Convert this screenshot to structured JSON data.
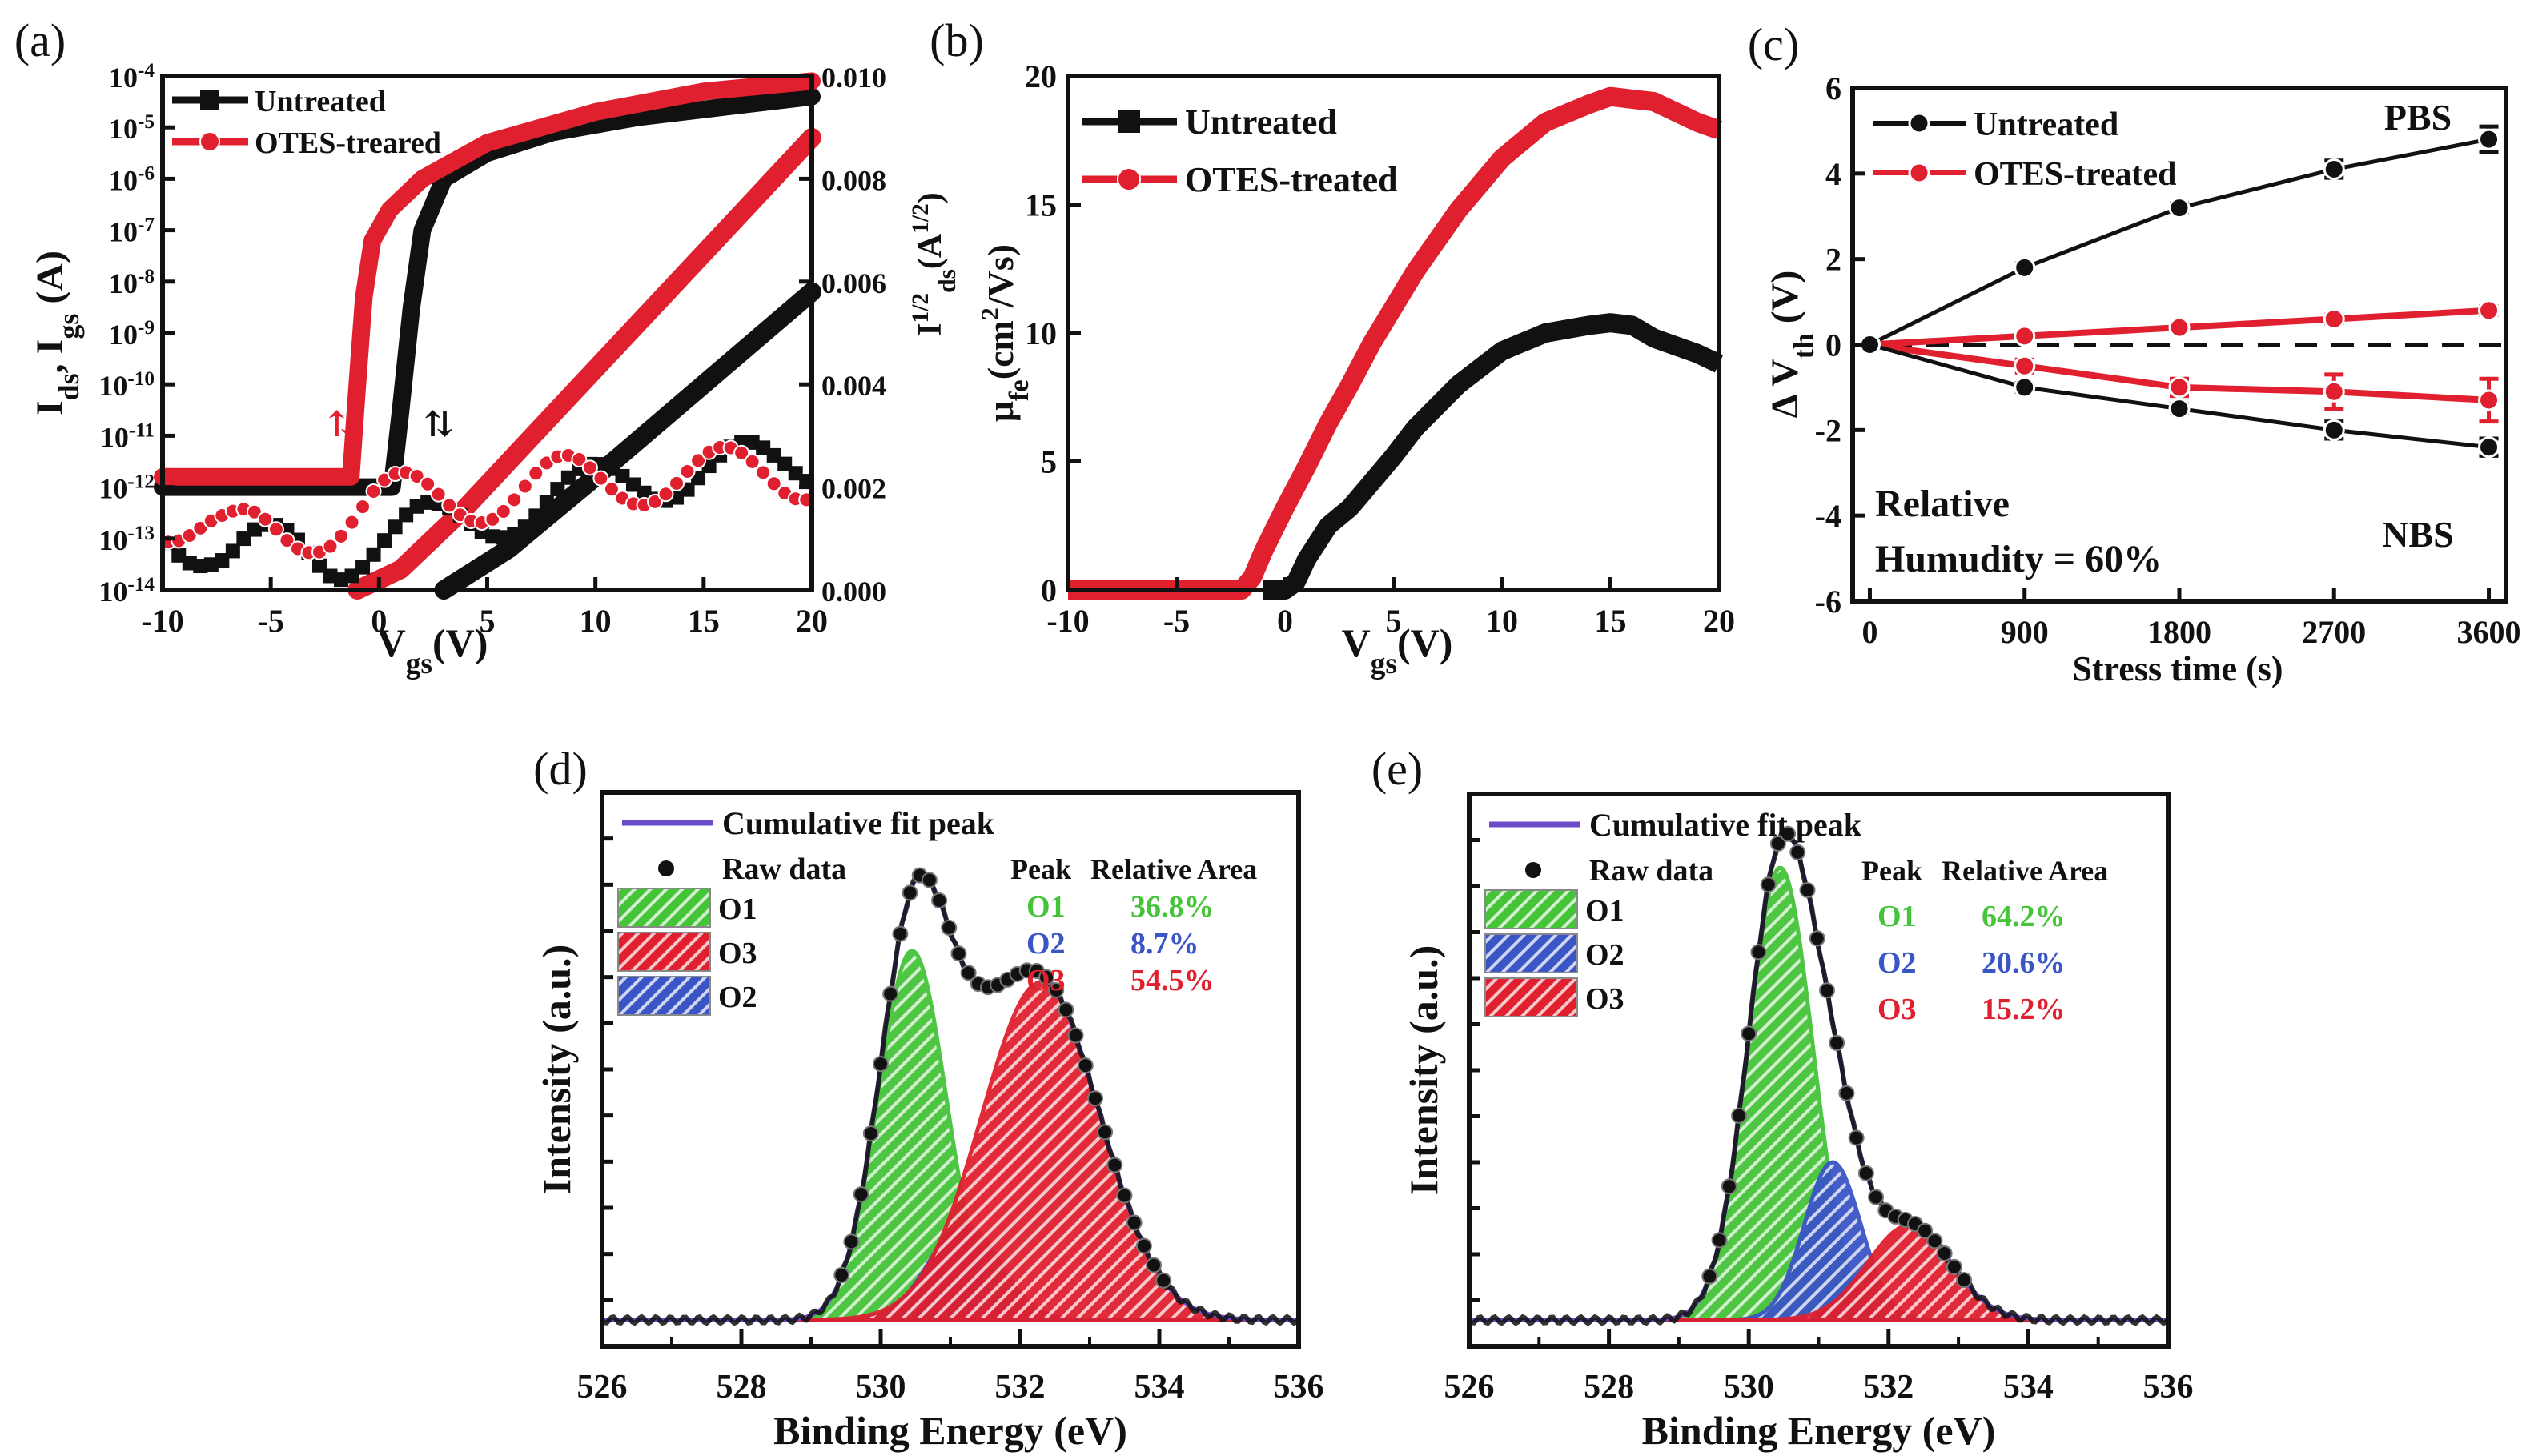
{
  "figure": {
    "colors": {
      "black": "#111111",
      "red": "#e0202e",
      "green": "#45c43a",
      "blue": "#3a55c6",
      "purple": "#6a4bc8"
    }
  },
  "chart_data": [
    {
      "id": "a",
      "panel_label": "(a)",
      "type": "line",
      "xlabel": "V",
      "xlabel_sub": "gs",
      "xlabel_unit": "(V)",
      "ylabel": "I",
      "ylabel_sub1": "ds",
      "ylabel_mid": ", I",
      "ylabel_sub2": "gs",
      "ylabel_unit": " (A)",
      "y2label": "I",
      "y2label_sup": "1/2",
      "y2label_sub": "ds",
      "y2label_unit": "(A",
      "y2label_unit_sup": "1/2",
      "y2label_close": ")",
      "xlim": [
        -10,
        20
      ],
      "xticks": [
        -10,
        -5,
        0,
        5,
        10,
        15,
        20
      ],
      "ylim_log_exp": [
        -14,
        -4
      ],
      "yticks_exp": [
        -4,
        -5,
        -6,
        -7,
        -8,
        -9,
        -10,
        -11,
        -12,
        -13,
        -14
      ],
      "y2lim": [
        0,
        0.01
      ],
      "y2ticks": [
        "0.010",
        "0.008",
        "0.006",
        "0.004",
        "0.002",
        "0.000"
      ],
      "legend": [
        {
          "label": "Untreated",
          "marker": "square",
          "color": "#111111"
        },
        {
          "label": "OTES-treared",
          "marker": "circle",
          "color": "#e0202e"
        }
      ],
      "series": [
        {
          "name": "Untreated log Ids",
          "axis": "log",
          "color": "#111111",
          "x": [
            -10,
            -6,
            -2,
            0.6,
            1.0,
            1.5,
            2.0,
            3,
            5,
            8,
            12,
            16,
            20
          ],
          "y": [
            -12,
            -12,
            -12,
            -12,
            -10.5,
            -8.5,
            -7,
            -6,
            -5.5,
            -5.1,
            -4.8,
            -4.6,
            -4.4
          ]
        },
        {
          "name": "OTES log Ids",
          "axis": "log",
          "color": "#e0202e",
          "x": [
            -10,
            -6,
            -2,
            -1.3,
            -1.0,
            -0.7,
            -0.3,
            0.5,
            2,
            5,
            10,
            15,
            20
          ],
          "y": [
            -11.8,
            -11.8,
            -11.8,
            -11.8,
            -10,
            -8.3,
            -7.2,
            -6.6,
            -6,
            -5.3,
            -4.7,
            -4.3,
            -4.1
          ]
        },
        {
          "name": "Untreated sqrt Ids",
          "axis": "linear",
          "color": "#111111",
          "x": [
            3,
            6,
            10,
            15,
            20
          ],
          "y": [
            0.0,
            0.0008,
            0.0022,
            0.004,
            0.0058
          ]
        },
        {
          "name": "OTES sqrt Ids",
          "axis": "linear",
          "color": "#e0202e",
          "x": [
            -1,
            1,
            4,
            8,
            12,
            16,
            20
          ],
          "y": [
            0.0,
            0.0004,
            0.0016,
            0.0034,
            0.0052,
            0.007,
            0.0088
          ]
        },
        {
          "name": "Untreated Igs",
          "axis": "log",
          "color": "#111111",
          "x": [
            -10,
            -7,
            -4,
            -2,
            0,
            3,
            6,
            9,
            12,
            15,
            18,
            20
          ],
          "y": [
            -12.6,
            -13.4,
            -13.2,
            -13.3,
            -13.0,
            -12.8,
            -12.4,
            -12.2,
            -11.8,
            -11.6,
            -11.7,
            -11.5
          ]
        },
        {
          "name": "OTES Igs",
          "axis": "log",
          "color": "#e0202e",
          "x": [
            -10,
            -7,
            -4,
            -2,
            0,
            3,
            6,
            9,
            12,
            15,
            18,
            20
          ],
          "y": [
            -12.5,
            -13.0,
            -12.9,
            -12.6,
            -12.3,
            -12.2,
            -12.1,
            -11.9,
            -11.8,
            -11.8,
            -11.7,
            -11.7
          ]
        }
      ],
      "annotations": [
        "hysteresis arrows ⇅ near -1.5 V (red) and 2.5 V (black)"
      ]
    },
    {
      "id": "b",
      "panel_label": "(b)",
      "type": "line",
      "xlabel": "V",
      "xlabel_sub": "gs",
      "xlabel_unit": "(V)",
      "ylabel": "μ",
      "ylabel_sub": "fe",
      "ylabel_unit": "(cm",
      "ylabel_unit_sup": "2",
      "ylabel_unit_end": "/Vs)",
      "xlim": [
        -10,
        20
      ],
      "xticks": [
        -10,
        -5,
        0,
        5,
        10,
        15,
        20
      ],
      "ylim": [
        0,
        20
      ],
      "yticks": [
        0,
        5,
        10,
        15,
        20
      ],
      "legend": [
        {
          "label": "Untreated",
          "marker": "square",
          "color": "#111111"
        },
        {
          "label": "OTES-treated",
          "marker": "circle",
          "color": "#e0202e"
        }
      ],
      "series": [
        {
          "name": "Untreated",
          "color": "#111111",
          "x": [
            -1,
            0,
            0.5,
            1,
            2,
            3,
            4,
            5,
            6,
            8,
            10,
            12,
            14,
            15,
            16,
            17,
            18,
            19,
            20
          ],
          "y": [
            0,
            0,
            0.3,
            1.2,
            2.5,
            3.2,
            4.2,
            5.2,
            6.3,
            8.0,
            9.3,
            10.0,
            10.3,
            10.4,
            10.3,
            9.8,
            9.5,
            9.2,
            8.8
          ]
        },
        {
          "name": "OTES-treated",
          "color": "#e0202e",
          "x": [
            -10,
            -2,
            -1.5,
            -1,
            0,
            1,
            2,
            3,
            4,
            5,
            6,
            8,
            10,
            12,
            14,
            15,
            16,
            17,
            18,
            19,
            20
          ],
          "y": [
            0,
            0,
            0.5,
            1.5,
            3.2,
            4.8,
            6.5,
            8.0,
            9.6,
            11.0,
            12.4,
            14.8,
            16.8,
            18.2,
            18.9,
            19.2,
            19.1,
            19.0,
            18.6,
            18.2,
            17.9
          ]
        }
      ]
    },
    {
      "id": "c",
      "panel_label": "(c)",
      "type": "line",
      "xlabel": "Stress time (s)",
      "ylabel": "Δ V",
      "ylabel_sub": "th",
      "ylabel_unit": " (V)",
      "xlim": [
        -100,
        3700
      ],
      "xticks": [
        0,
        900,
        1800,
        2700,
        3600
      ],
      "ylim": [
        -6,
        6
      ],
      "yticks": [
        -6,
        -4,
        -2,
        0,
        2,
        4,
        6
      ],
      "legend": [
        {
          "label": "Untreated",
          "marker": "circle",
          "color": "#111111"
        },
        {
          "label": "OTES-treated",
          "marker": "circle",
          "color": "#e0202e"
        }
      ],
      "annotations": [
        "PBS",
        "NBS",
        "Relative",
        "Humudity = 60%"
      ],
      "series": [
        {
          "name": "Untreated PBS",
          "color": "#111111",
          "x": [
            0,
            900,
            1800,
            2700,
            3600
          ],
          "y": [
            0,
            1.8,
            3.2,
            4.1,
            4.8
          ],
          "err": [
            0,
            0.1,
            0.1,
            0.2,
            0.3
          ]
        },
        {
          "name": "OTES-treated PBS",
          "color": "#e0202e",
          "x": [
            0,
            900,
            1800,
            2700,
            3600
          ],
          "y": [
            0,
            0.2,
            0.4,
            0.6,
            0.8
          ],
          "err": [
            0,
            0.05,
            0.05,
            0.1,
            0.1
          ]
        },
        {
          "name": "OTES-treated NBS",
          "color": "#e0202e",
          "x": [
            0,
            900,
            1800,
            2700,
            3600
          ],
          "y": [
            0,
            -0.5,
            -1.0,
            -1.1,
            -1.3
          ],
          "err": [
            0,
            0.15,
            0.2,
            0.4,
            0.5
          ]
        },
        {
          "name": "Untreated NBS",
          "color": "#111111",
          "x": [
            0,
            900,
            1800,
            2700,
            3600
          ],
          "y": [
            0,
            -1.0,
            -1.5,
            -2.0,
            -2.4
          ],
          "err": [
            0,
            0.1,
            0.1,
            0.2,
            0.2
          ]
        }
      ],
      "reference_line": {
        "y": 0,
        "style": "dashed"
      }
    },
    {
      "id": "d",
      "panel_label": "(d)",
      "type": "area",
      "xlabel": "Binding Energy (eV)",
      "ylabel": "Intensity (a.u.)",
      "xlim": [
        526,
        536
      ],
      "xticks": [
        526,
        528,
        530,
        532,
        534,
        536
      ],
      "legend": [
        {
          "label": "Cumulative fit peak",
          "kind": "line",
          "color": "#6a4bc8"
        },
        {
          "label": "Raw data",
          "kind": "dot",
          "color": "#111111"
        },
        {
          "label": "O1",
          "kind": "hatch",
          "color": "#45c43a"
        },
        {
          "label": "O3",
          "kind": "hatch",
          "color": "#e0202e"
        },
        {
          "label": "O2",
          "kind": "hatch",
          "color": "#3a55c6"
        }
      ],
      "table": {
        "headers": [
          "Peak",
          "Relative Area"
        ],
        "rows": [
          {
            "peak": "O1",
            "area": "36.8%",
            "color": "#45c43a"
          },
          {
            "peak": "O2",
            "area": "8.7%",
            "color": "#3a55c6"
          },
          {
            "peak": "O3",
            "area": "54.5%",
            "color": "#e0202e"
          }
        ]
      },
      "baseline": 0.05,
      "peaks": [
        {
          "name": "O1",
          "center": 530.45,
          "height": 0.7,
          "fwhm": 1.15,
          "color": "#45c43a"
        },
        {
          "name": "O2",
          "center": 531.2,
          "height": 0.18,
          "fwhm": 1.2,
          "color": "#3a55c6"
        },
        {
          "name": "O3",
          "center": 532.3,
          "height": 0.64,
          "fwhm": 2.0,
          "color": "#e0202e"
        }
      ],
      "ylim": [
        0,
        1.05
      ]
    },
    {
      "id": "e",
      "panel_label": "(e)",
      "type": "area",
      "xlabel": "Binding Energy (eV)",
      "ylabel": "Intensity (a.u.)",
      "xlim": [
        526,
        536
      ],
      "xticks": [
        526,
        528,
        530,
        532,
        534,
        536
      ],
      "legend": [
        {
          "label": "Cumulative fit peak",
          "kind": "line",
          "color": "#6a4bc8"
        },
        {
          "label": "Raw data",
          "kind": "dot",
          "color": "#111111"
        },
        {
          "label": "O1",
          "kind": "hatch",
          "color": "#45c43a"
        },
        {
          "label": "O2",
          "kind": "hatch",
          "color": "#3a55c6"
        },
        {
          "label": "O3",
          "kind": "hatch",
          "color": "#e0202e"
        }
      ],
      "table": {
        "headers": [
          "Peak",
          "Relative Area"
        ],
        "rows": [
          {
            "peak": "O1",
            "area": "64.2%",
            "color": "#45c43a"
          },
          {
            "peak": "O2",
            "area": "20.6%",
            "color": "#3a55c6"
          },
          {
            "peak": "O3",
            "area": "15.2%",
            "color": "#e0202e"
          }
        ]
      },
      "baseline": 0.05,
      "peaks": [
        {
          "name": "O1",
          "center": 530.45,
          "height": 0.86,
          "fwhm": 1.1,
          "color": "#45c43a"
        },
        {
          "name": "O2",
          "center": 531.2,
          "height": 0.3,
          "fwhm": 0.95,
          "color": "#3a55c6"
        },
        {
          "name": "O3",
          "center": 532.3,
          "height": 0.18,
          "fwhm": 1.4,
          "color": "#e0202e"
        }
      ],
      "ylim": [
        0,
        1.05
      ]
    }
  ]
}
